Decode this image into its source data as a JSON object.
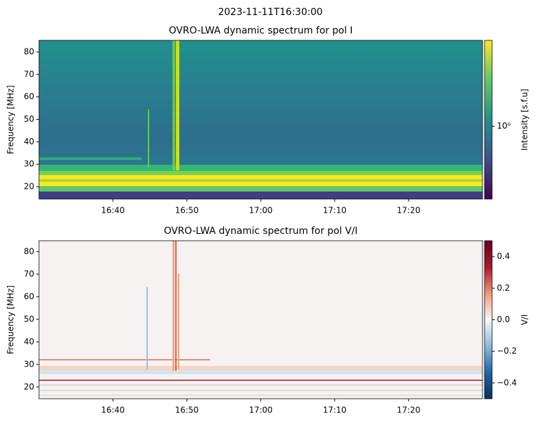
{
  "title": "2023-11-11T16:30:00",
  "chart_data": [
    {
      "type": "heatmap",
      "title": "OVRO-LWA dynamic spectrum for pol I",
      "ylabel": "Frequency [MHz]",
      "xlim": [
        "16:30",
        "17:30"
      ],
      "xticks": [
        "16:40",
        "16:50",
        "17:00",
        "17:10",
        "17:20"
      ],
      "ylim": [
        14.5,
        85.2
      ],
      "yticks": [
        20,
        30,
        40,
        50,
        60,
        70,
        80
      ],
      "colorbar": {
        "label": "Intensity [s.f.u]",
        "colormap": "viridis",
        "scale": "log",
        "lim": [
          0.28,
          4.5
        ],
        "ticks": [
          {
            "value": 1,
            "label": "10⁰"
          }
        ]
      }
    },
    {
      "type": "heatmap",
      "title": "OVRO-LWA dynamic spectrum for pol V/I",
      "ylabel": "Frequency [MHz]",
      "xlim": [
        "16:30",
        "17:30"
      ],
      "xticks": [
        "16:40",
        "16:50",
        "17:00",
        "17:10",
        "17:20"
      ],
      "ylim": [
        14.8,
        84.8
      ],
      "yticks": [
        20,
        30,
        40,
        50,
        60,
        70,
        80
      ],
      "colorbar": {
        "label": "V/I",
        "colormap": "RdBu_r",
        "scale": "linear",
        "lim": [
          -0.5,
          0.5
        ],
        "ticks": [
          0.4,
          0.2,
          {
            "value": 0,
            "label": "0.0"
          },
          {
            "value": -0.2,
            "label": "−0.2"
          },
          {
            "value": -0.4,
            "label": "−0.4"
          }
        ]
      }
    }
  ]
}
